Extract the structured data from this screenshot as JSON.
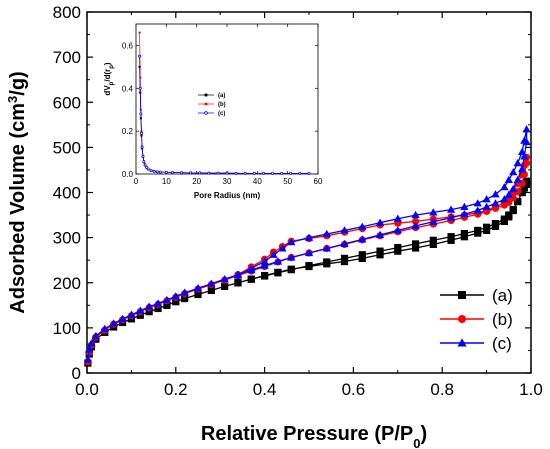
{
  "chart_data": [
    {
      "type": "line",
      "xlabel": "Relative Pressure (P/P",
      "xlabel_sub": "0",
      "xlabel_end": ")",
      "ylabel": "Adsorbed Volume (cm",
      "ylabel_sup": "3",
      "ylabel_end": "/g)",
      "xlim": [
        0.0,
        1.0
      ],
      "ylim": [
        0,
        800
      ],
      "xticks": [
        "0.0",
        "0.2",
        "0.4",
        "0.6",
        "0.8",
        "1.0"
      ],
      "yticks": [
        "0",
        "100",
        "200",
        "300",
        "400",
        "500",
        "600",
        "700",
        "800"
      ],
      "legend_position": "bottom-right",
      "series": [
        {
          "name": "(a)",
          "color": "#000000",
          "marker": "square",
          "x": [
            0.002,
            0.005,
            0.01,
            0.02,
            0.04,
            0.06,
            0.08,
            0.1,
            0.12,
            0.14,
            0.16,
            0.18,
            0.2,
            0.22,
            0.25,
            0.28,
            0.31,
            0.34,
            0.37,
            0.4,
            0.43,
            0.46,
            0.5,
            0.54,
            0.58,
            0.62,
            0.66,
            0.7,
            0.74,
            0.78,
            0.82,
            0.85,
            0.88,
            0.9,
            0.92,
            0.94,
            0.95,
            0.96,
            0.97,
            0.98,
            0.985,
            0.99,
            0.99,
            0.985,
            0.98,
            0.97,
            0.96,
            0.95,
            0.94,
            0.92,
            0.9,
            0.88,
            0.85,
            0.82,
            0.78,
            0.74,
            0.7,
            0.66,
            0.62,
            0.58,
            0.54,
            0.5,
            0.46,
            0.43,
            0.4,
            0.37,
            0.34
          ],
          "y": [
            22,
            42,
            58,
            75,
            90,
            102,
            112,
            120,
            128,
            136,
            143,
            150,
            158,
            165,
            174,
            183,
            192,
            200,
            208,
            215,
            222,
            229,
            238,
            246,
            254,
            262,
            270,
            278,
            286,
            294,
            302,
            309,
            316,
            323,
            331,
            341,
            350,
            362,
            380,
            400,
            410,
            418,
            425,
            420,
            400,
            380,
            360,
            346,
            336,
            325,
            316,
            310,
            302,
            294,
            285,
            277,
            270,
            262,
            254,
            247,
            242,
            236,
            230,
            223,
            216,
            208,
            200
          ]
        },
        {
          "name": "(b)",
          "color": "#ff0000",
          "marker": "circle",
          "x": [
            0.002,
            0.005,
            0.01,
            0.02,
            0.04,
            0.06,
            0.08,
            0.1,
            0.12,
            0.14,
            0.16,
            0.18,
            0.2,
            0.22,
            0.25,
            0.28,
            0.31,
            0.34,
            0.37,
            0.4,
            0.43,
            0.46,
            0.5,
            0.54,
            0.58,
            0.62,
            0.66,
            0.7,
            0.74,
            0.78,
            0.82,
            0.85,
            0.88,
            0.9,
            0.92,
            0.94,
            0.95,
            0.96,
            0.97,
            0.98,
            0.985,
            0.99,
            0.99,
            0.985,
            0.98,
            0.97,
            0.96,
            0.95,
            0.94,
            0.92,
            0.9,
            0.88,
            0.85,
            0.82,
            0.78,
            0.74,
            0.7,
            0.66,
            0.62,
            0.58,
            0.54,
            0.5,
            0.46,
            0.44,
            0.42,
            0.4,
            0.37,
            0.34
          ],
          "y": [
            25,
            46,
            62,
            80,
            95,
            108,
            118,
            127,
            136,
            145,
            152,
            160,
            168,
            176,
            186,
            196,
            206,
            216,
            226,
            236,
            246,
            256,
            266,
            276,
            285,
            295,
            304,
            313,
            322,
            330,
            338,
            345,
            352,
            358,
            365,
            372,
            378,
            388,
            402,
            420,
            440,
            465,
            478,
            460,
            440,
            420,
            402,
            388,
            378,
            368,
            360,
            355,
            350,
            346,
            341,
            336,
            332,
            328,
            320,
            312,
            304,
            298,
            292,
            280,
            268,
            252,
            235,
            218
          ]
        },
        {
          "name": "(c)",
          "color": "#0000ff",
          "marker": "triangle",
          "x": [
            0.002,
            0.005,
            0.01,
            0.02,
            0.04,
            0.06,
            0.08,
            0.1,
            0.12,
            0.14,
            0.16,
            0.18,
            0.2,
            0.22,
            0.25,
            0.28,
            0.31,
            0.34,
            0.37,
            0.4,
            0.43,
            0.46,
            0.5,
            0.54,
            0.58,
            0.62,
            0.66,
            0.7,
            0.74,
            0.78,
            0.82,
            0.85,
            0.88,
            0.9,
            0.92,
            0.94,
            0.95,
            0.96,
            0.97,
            0.98,
            0.985,
            0.99,
            0.99,
            0.985,
            0.98,
            0.97,
            0.96,
            0.95,
            0.94,
            0.92,
            0.9,
            0.88,
            0.85,
            0.82,
            0.78,
            0.74,
            0.7,
            0.66,
            0.62,
            0.58,
            0.54,
            0.5,
            0.46,
            0.44,
            0.42,
            0.4,
            0.37,
            0.34
          ],
          "y": [
            30,
            52,
            66,
            82,
            98,
            110,
            120,
            129,
            138,
            147,
            154,
            162,
            170,
            178,
            188,
            198,
            208,
            218,
            228,
            238,
            247,
            256,
            266,
            276,
            286,
            296,
            306,
            316,
            326,
            335,
            344,
            352,
            360,
            368,
            376,
            385,
            395,
            408,
            428,
            452,
            480,
            512,
            540,
            515,
            490,
            465,
            445,
            428,
            412,
            396,
            385,
            376,
            368,
            362,
            356,
            350,
            342,
            333,
            324,
            316,
            308,
            300,
            290,
            276,
            262,
            247,
            232,
            216
          ]
        }
      ]
    },
    {
      "type": "line",
      "inset": true,
      "xlabel": "Pore Radius (nm)",
      "ylabel": "dV",
      "ylabel_sub": "p",
      "ylabel_mid": "/d(r",
      "ylabel_sub2": "p",
      "ylabel_end": ")",
      "xlim": [
        0,
        60
      ],
      "ylim": [
        0.0,
        0.7
      ],
      "xticks": [
        "0",
        "10",
        "20",
        "30",
        "40",
        "50",
        "60"
      ],
      "yticks": [
        "0.0",
        "0.2",
        "0.4",
        "0.6"
      ],
      "legend_position": "middle-left",
      "series": [
        {
          "name": "(a)",
          "color": "#000000",
          "marker": "square",
          "x": [
            1.2,
            1.4,
            1.6,
            1.8,
            2.0,
            2.3,
            2.6,
            3,
            3.5,
            4,
            5,
            6,
            7,
            8,
            10,
            12,
            15,
            18,
            21,
            24,
            27,
            30,
            33,
            36,
            39,
            42,
            45,
            48,
            51,
            54,
            57
          ],
          "y": [
            0.5,
            0.38,
            0.26,
            0.18,
            0.12,
            0.08,
            0.055,
            0.04,
            0.03,
            0.022,
            0.015,
            0.012,
            0.01,
            0.009,
            0.008,
            0.007,
            0.006,
            0.005,
            0.005,
            0.004,
            0.004,
            0.004,
            0.003,
            0.003,
            0.003,
            0.003,
            0.003,
            0.003,
            0.003,
            0.003,
            0.003
          ]
        },
        {
          "name": "(b)",
          "color": "#ff0000",
          "marker": "circle",
          "x": [
            1.2,
            1.4,
            1.6,
            1.8,
            2.0,
            2.3,
            2.6,
            3,
            3.5,
            4,
            5,
            6,
            7,
            8,
            10,
            12,
            15,
            18,
            21,
            24,
            27,
            30,
            33,
            36,
            39,
            42,
            45,
            48,
            51,
            54,
            57
          ],
          "y": [
            0.66,
            0.45,
            0.3,
            0.2,
            0.13,
            0.085,
            0.06,
            0.045,
            0.032,
            0.024,
            0.016,
            0.013,
            0.011,
            0.01,
            0.008,
            0.007,
            0.006,
            0.005,
            0.005,
            0.004,
            0.004,
            0.004,
            0.004,
            0.003,
            0.003,
            0.003,
            0.003,
            0.003,
            0.003,
            0.003,
            0.003
          ]
        },
        {
          "name": "(c)",
          "color": "#0000ff",
          "marker": "open-circle",
          "x": [
            1.2,
            1.4,
            1.6,
            1.8,
            2.0,
            2.3,
            2.6,
            3,
            3.5,
            4,
            5,
            6,
            7,
            8,
            10,
            12,
            15,
            18,
            21,
            24,
            27,
            30,
            33,
            36,
            39,
            42,
            45,
            48,
            51,
            54,
            57
          ],
          "y": [
            0.55,
            0.4,
            0.28,
            0.19,
            0.125,
            0.082,
            0.058,
            0.042,
            0.031,
            0.023,
            0.016,
            0.012,
            0.01,
            0.009,
            0.008,
            0.007,
            0.006,
            0.005,
            0.005,
            0.004,
            0.004,
            0.004,
            0.003,
            0.003,
            0.003,
            0.003,
            0.003,
            0.003,
            0.003,
            0.003,
            0.003
          ]
        }
      ]
    }
  ]
}
